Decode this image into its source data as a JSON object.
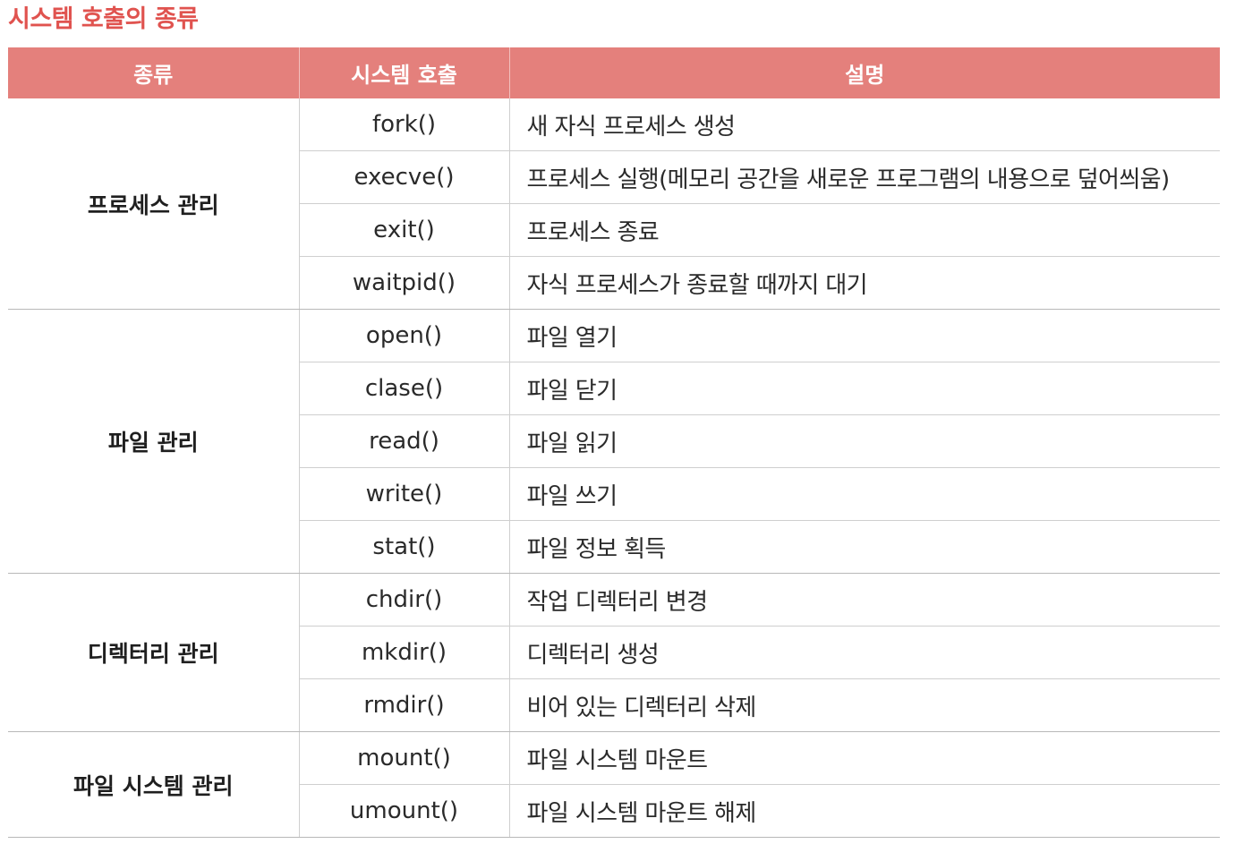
{
  "title": "시스템 호출의 종류",
  "header": {
    "col_category": "종류",
    "col_syscall": "시스템 호출",
    "col_description": "설명"
  },
  "colors": {
    "title": "#e0534f",
    "header_bg": "#e4807c",
    "header_text": "#ffffff",
    "rule": "#cfcfcf"
  },
  "groups": [
    {
      "category": "프로세스 관리",
      "rows": [
        {
          "call": "fork()",
          "desc": "새 자식 프로세스 생성"
        },
        {
          "call": "execve()",
          "desc": "프로세스 실행(메모리 공간을 새로운 프로그램의 내용으로 덮어씌움)"
        },
        {
          "call": "exit()",
          "desc": "프로세스 종료"
        },
        {
          "call": "waitpid()",
          "desc": "자식 프로세스가 종료할 때까지 대기"
        }
      ]
    },
    {
      "category": "파일 관리",
      "rows": [
        {
          "call": "open()",
          "desc": "파일 열기"
        },
        {
          "call": "clase()",
          "desc": "파일 닫기"
        },
        {
          "call": "read()",
          "desc": "파일 읽기"
        },
        {
          "call": "write()",
          "desc": "파일 쓰기"
        },
        {
          "call": "stat()",
          "desc": "파일 정보 획득"
        }
      ]
    },
    {
      "category": "디렉터리 관리",
      "rows": [
        {
          "call": "chdir()",
          "desc": "작업 디렉터리 변경"
        },
        {
          "call": "mkdir()",
          "desc": "디렉터리 생성"
        },
        {
          "call": "rmdir()",
          "desc": "비어 있는 디렉터리 삭제"
        }
      ]
    },
    {
      "category": "파일 시스템 관리",
      "rows": [
        {
          "call": "mount()",
          "desc": "파일 시스템 마운트"
        },
        {
          "call": "umount()",
          "desc": "파일 시스템 마운트 해제"
        }
      ]
    }
  ]
}
